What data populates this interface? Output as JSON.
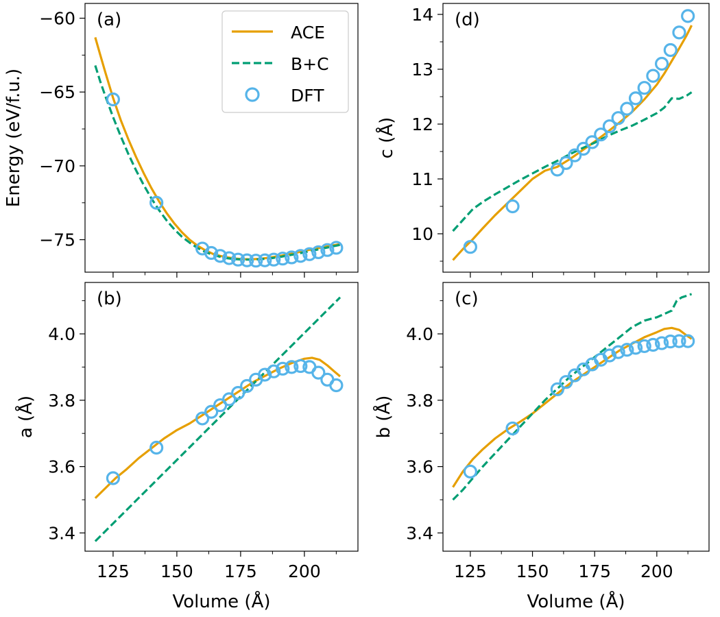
{
  "colors": {
    "ace": "#E69F00",
    "bc": "#009E73",
    "dft": "#56B4E9"
  },
  "legend": {
    "ace": "ACE",
    "bc": "B+C",
    "dft": "DFT"
  },
  "chart_data": [
    {
      "id": "a",
      "type": "line",
      "panel_label": "(a)",
      "xlabel": "",
      "ylabel": "Energy (eV/f.u.)",
      "xlim": [
        114,
        221
      ],
      "ylim": [
        -77.2,
        -59.0
      ],
      "xticks": [
        125,
        150,
        175,
        200
      ],
      "xtick_labels": [
        "",
        "",
        "",
        ""
      ],
      "yticks": [
        -75,
        -70,
        -65,
        -60
      ],
      "ytick_labels": [
        "−75",
        "−70",
        "−65",
        "−60"
      ],
      "series": [
        {
          "name": "ACE",
          "x": [
            118,
            120,
            122,
            125,
            128,
            131,
            134,
            137,
            140,
            143,
            146,
            149,
            152,
            155,
            158,
            161,
            164,
            167,
            170,
            173,
            176,
            179,
            182,
            185,
            188,
            191,
            194,
            197,
            200,
            203,
            206,
            209,
            212,
            214
          ],
          "y": [
            -61.3,
            -62.5,
            -63.7,
            -65.4,
            -66.9,
            -68.2,
            -69.4,
            -70.5,
            -71.5,
            -72.4,
            -73.2,
            -73.9,
            -74.5,
            -75.0,
            -75.4,
            -75.7,
            -75.95,
            -76.1,
            -76.2,
            -76.28,
            -76.32,
            -76.33,
            -76.3,
            -76.25,
            -76.17,
            -76.08,
            -75.98,
            -75.87,
            -75.76,
            -75.65,
            -75.55,
            -75.45,
            -75.36,
            -75.3
          ]
        },
        {
          "name": "B+C",
          "x": [
            118,
            120,
            122,
            125,
            128,
            131,
            134,
            137,
            140,
            143,
            146,
            149,
            152,
            155,
            158,
            161,
            164,
            167,
            170,
            173,
            176,
            179,
            182,
            185,
            188,
            191,
            194,
            197,
            200,
            203,
            206,
            209,
            212,
            214
          ],
          "y": [
            -63.2,
            -64.3,
            -65.3,
            -66.7,
            -68.0,
            -69.2,
            -70.3,
            -71.3,
            -72.2,
            -73.0,
            -73.7,
            -74.3,
            -74.8,
            -75.2,
            -75.55,
            -75.82,
            -76.02,
            -76.16,
            -76.26,
            -76.32,
            -76.35,
            -76.35,
            -76.33,
            -76.29,
            -76.23,
            -76.15,
            -76.06,
            -75.96,
            -75.86,
            -75.75,
            -75.64,
            -75.53,
            -75.42,
            -75.35
          ]
        },
        {
          "name": "DFT",
          "x": [
            125,
            142,
            160,
            163.5,
            167,
            170.5,
            174,
            177.5,
            181,
            184.5,
            188,
            191.5,
            195,
            198.5,
            202,
            205.5,
            209,
            212.5
          ],
          "y": [
            -65.5,
            -72.5,
            -75.6,
            -75.9,
            -76.1,
            -76.25,
            -76.35,
            -76.4,
            -76.42,
            -76.4,
            -76.35,
            -76.28,
            -76.2,
            -76.1,
            -75.98,
            -75.85,
            -75.7,
            -75.55
          ]
        }
      ]
    },
    {
      "id": "d",
      "type": "line",
      "panel_label": "(d)",
      "xlabel": "",
      "ylabel": "c (Å)",
      "xlim": [
        114,
        221
      ],
      "ylim": [
        9.3,
        14.2
      ],
      "xticks": [
        125,
        150,
        175,
        200
      ],
      "xtick_labels": [
        "",
        "",
        "",
        ""
      ],
      "yticks": [
        10,
        11,
        12,
        13,
        14
      ],
      "ytick_labels": [
        "10",
        "11",
        "12",
        "13",
        "14"
      ],
      "series": [
        {
          "name": "ACE",
          "x": [
            118,
            122,
            126,
            130,
            135,
            140,
            145,
            150,
            155,
            160,
            165,
            170,
            175,
            180,
            185,
            190,
            195,
            200,
            203,
            206,
            209,
            212,
            214
          ],
          "y": [
            9.52,
            9.72,
            9.9,
            10.1,
            10.34,
            10.56,
            10.78,
            11.0,
            11.15,
            11.22,
            11.36,
            11.52,
            11.68,
            11.85,
            12.03,
            12.22,
            12.45,
            12.72,
            12.92,
            13.15,
            13.38,
            13.62,
            13.8
          ]
        },
        {
          "name": "B+C",
          "x": [
            118,
            122,
            126,
            130,
            135,
            140,
            145,
            150,
            155,
            160,
            165,
            170,
            175,
            180,
            185,
            190,
            195,
            200,
            203,
            206,
            209,
            212,
            214
          ],
          "y": [
            10.05,
            10.25,
            10.45,
            10.58,
            10.72,
            10.85,
            10.98,
            11.1,
            11.22,
            11.33,
            11.45,
            11.56,
            11.66,
            11.78,
            11.88,
            11.97,
            12.08,
            12.2,
            12.3,
            12.47,
            12.46,
            12.52,
            12.58
          ]
        },
        {
          "name": "DFT",
          "x": [
            125,
            142,
            160,
            163.5,
            167,
            170.5,
            174,
            177.5,
            181,
            184.5,
            188,
            191.5,
            195,
            198.5,
            202,
            205.5,
            209,
            212.5
          ],
          "y": [
            9.76,
            10.5,
            11.17,
            11.29,
            11.43,
            11.55,
            11.67,
            11.81,
            11.96,
            12.11,
            12.28,
            12.47,
            12.66,
            12.88,
            13.1,
            13.35,
            13.67,
            13.97
          ]
        }
      ]
    },
    {
      "id": "b",
      "type": "line",
      "panel_label": "(b)",
      "xlabel": "Volume (Å)",
      "ylabel": "a (Å)",
      "xlim": [
        114,
        221
      ],
      "ylim": [
        3.345,
        4.155
      ],
      "xticks": [
        125,
        150,
        175,
        200
      ],
      "xtick_labels": [
        "125",
        "150",
        "175",
        "200"
      ],
      "yticks": [
        3.4,
        3.6,
        3.8,
        4.0
      ],
      "ytick_labels": [
        "3.4",
        "3.6",
        "3.8",
        "4.0"
      ],
      "series": [
        {
          "name": "ACE",
          "x": [
            118,
            122,
            126,
            130,
            135,
            140,
            145,
            150,
            155,
            160,
            165,
            170,
            175,
            180,
            185,
            190,
            195,
            200,
            203,
            206,
            209,
            212,
            214
          ],
          "y": [
            3.505,
            3.535,
            3.565,
            3.59,
            3.625,
            3.655,
            3.685,
            3.71,
            3.73,
            3.755,
            3.78,
            3.805,
            3.83,
            3.855,
            3.875,
            3.895,
            3.912,
            3.925,
            3.928,
            3.922,
            3.905,
            3.885,
            3.872
          ]
        },
        {
          "name": "B+C",
          "x": [
            118,
            214
          ],
          "y": [
            3.375,
            4.11
          ]
        },
        {
          "name": "DFT",
          "x": [
            125,
            142,
            160,
            163.5,
            167,
            170.5,
            174,
            177.5,
            181,
            184.5,
            188,
            191.5,
            195,
            198.5,
            202,
            205.5,
            209,
            212.5
          ],
          "y": [
            3.565,
            3.657,
            3.745,
            3.765,
            3.785,
            3.803,
            3.822,
            3.843,
            3.862,
            3.877,
            3.887,
            3.895,
            3.9,
            3.903,
            3.9,
            3.883,
            3.862,
            3.845
          ]
        }
      ]
    },
    {
      "id": "c",
      "type": "line",
      "panel_label": "(c)",
      "xlabel": "Volume (Å)",
      "ylabel": "b (Å)",
      "xlim": [
        114,
        221
      ],
      "ylim": [
        3.345,
        4.155
      ],
      "xticks": [
        125,
        150,
        175,
        200
      ],
      "xtick_labels": [
        "125",
        "150",
        "175",
        "200"
      ],
      "yticks": [
        3.4,
        3.6,
        3.8,
        4.0
      ],
      "ytick_labels": [
        "3.4",
        "3.6",
        "3.8",
        "4.0"
      ],
      "series": [
        {
          "name": "ACE",
          "x": [
            118,
            122,
            126,
            130,
            135,
            140,
            145,
            150,
            155,
            160,
            165,
            170,
            175,
            180,
            185,
            190,
            195,
            200,
            203,
            206,
            209,
            212,
            214
          ],
          "y": [
            3.538,
            3.585,
            3.622,
            3.652,
            3.685,
            3.712,
            3.735,
            3.76,
            3.79,
            3.82,
            3.85,
            3.875,
            3.9,
            3.925,
            3.95,
            3.97,
            3.99,
            4.005,
            4.015,
            4.018,
            4.012,
            3.995,
            3.985
          ]
        },
        {
          "name": "B+C",
          "x": [
            118,
            122,
            126,
            130,
            135,
            140,
            145,
            150,
            155,
            160,
            165,
            170,
            175,
            180,
            185,
            190,
            195,
            200,
            203,
            206,
            208,
            210,
            212,
            214
          ],
          "y": [
            3.5,
            3.53,
            3.565,
            3.6,
            3.64,
            3.68,
            3.72,
            3.76,
            3.8,
            3.835,
            3.87,
            3.9,
            3.93,
            3.96,
            3.99,
            4.02,
            4.04,
            4.05,
            4.06,
            4.07,
            4.1,
            4.11,
            4.115,
            4.12
          ]
        },
        {
          "name": "DFT",
          "x": [
            125,
            142,
            160,
            163.5,
            167,
            170.5,
            174,
            177.5,
            181,
            184.5,
            188,
            191.5,
            195,
            198.5,
            202,
            205.5,
            209,
            212.5
          ],
          "y": [
            3.585,
            3.715,
            3.833,
            3.855,
            3.875,
            3.893,
            3.908,
            3.922,
            3.935,
            3.945,
            3.952,
            3.958,
            3.963,
            3.967,
            3.972,
            3.977,
            3.978,
            3.978
          ]
        }
      ]
    }
  ]
}
